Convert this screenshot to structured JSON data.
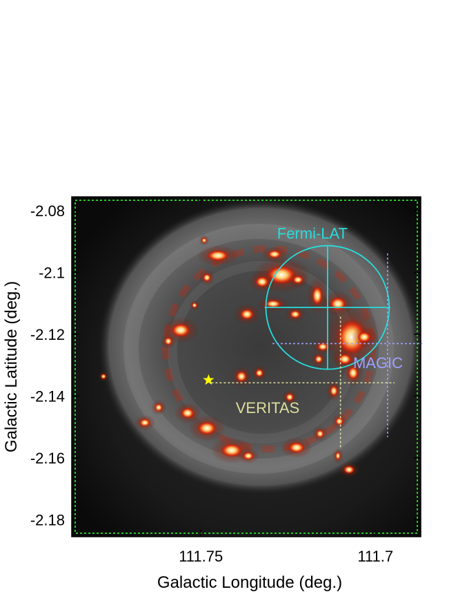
{
  "chart_data": {
    "type": "image",
    "title": "",
    "xlabel": "Galactic Longitude (deg.)",
    "ylabel": "Galactic Latitude (deg.)",
    "xlim": [
      111.787,
      111.687
    ],
    "ylim": [
      -2.1855,
      -2.0755
    ],
    "x_ticks": [
      {
        "value": 111.75,
        "label": "111.75"
      },
      {
        "value": 111.7,
        "label": "111.7"
      }
    ],
    "y_ticks": [
      {
        "value": -2.08,
        "label": "-2.08"
      },
      {
        "value": -2.1,
        "label": "-2.1"
      },
      {
        "value": -2.12,
        "label": "-2.12"
      },
      {
        "value": -2.14,
        "label": "-2.14"
      },
      {
        "value": -2.16,
        "label": "-2.16"
      },
      {
        "value": -2.18,
        "label": "-2.18"
      }
    ],
    "background": "X-ray image of supernova remnant Cas A (greyscale shell with red/yellow bright knots)",
    "annotations": [
      {
        "name": "Fermi-LAT",
        "label": "Fermi-LAT",
        "shape": "circle with cross",
        "center": [
          111.7137,
          -2.1113
        ],
        "radius_deg": 0.02,
        "cross_halfwidth_lon": 0.018,
        "color": "#28dcdc"
      },
      {
        "name": "MAGIC",
        "label": "MAGIC",
        "shape": "dashed cross",
        "center": [
          111.6965,
          -2.123
        ],
        "lon_range": [
          111.7295,
          111.6865
        ],
        "lat_range": [
          -2.0938,
          -2.1533
        ],
        "color": "#a0a0ff"
      },
      {
        "name": "VERITAS",
        "label": "VERITAS",
        "shape": "dashed cross",
        "center": [
          111.71,
          -2.1357
        ],
        "lon_range": [
          111.747,
          111.6945
        ],
        "lat_range": [
          -2.1143,
          -2.1573
        ],
        "color": "#dede9e"
      },
      {
        "name": "star",
        "label": "",
        "shape": "star",
        "center": [
          111.7478,
          -2.1348
        ],
        "color": "#ffff00"
      }
    ],
    "frame_color": "#22cc22"
  }
}
